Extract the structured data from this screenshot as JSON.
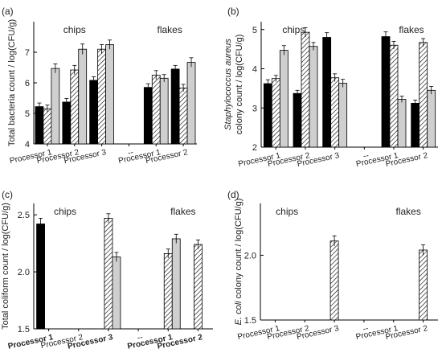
{
  "chart_data": [
    {
      "id": "a",
      "panel_label": "(a)",
      "type": "bar",
      "ylabel": "Total bacteria count / log(CFU/g)",
      "ylabel_parts": [],
      "ylim": [
        4,
        8
      ],
      "yticks": [
        4,
        5,
        6,
        7
      ],
      "categories": [
        "Processor 1",
        "Processor 2",
        "Processor 3",
        "--",
        "Processor 1",
        "Processor 2"
      ],
      "category_bold": [
        false,
        false,
        false,
        false,
        false,
        false
      ],
      "group_labels": [
        {
          "text": "chips",
          "over": 1
        },
        {
          "text": "flakes",
          "over": 4.5
        }
      ],
      "series": [
        {
          "pattern": "black",
          "values": [
            5.22,
            5.37,
            6.08,
            null,
            5.85,
            6.45
          ],
          "errors": [
            0.12,
            0.12,
            0.12,
            null,
            0.12,
            0.12
          ]
        },
        {
          "pattern": "hatch",
          "values": [
            5.15,
            6.42,
            7.1,
            null,
            6.25,
            5.83
          ],
          "errors": [
            0.12,
            0.15,
            0.15,
            null,
            0.15,
            0.12
          ]
        },
        {
          "pattern": "gray",
          "values": [
            6.47,
            7.1,
            7.25,
            null,
            6.15,
            6.67
          ],
          "errors": [
            0.15,
            0.17,
            0.15,
            null,
            0.12,
            0.15
          ]
        }
      ]
    },
    {
      "id": "b",
      "panel_label": "(b)",
      "type": "bar",
      "ylabel": "",
      "ylabel_parts": [
        "Staphylococcus aureus",
        "colony count / log(CFU/g)"
      ],
      "ylim": [
        2,
        5.2
      ],
      "yticks": [
        2,
        3,
        4,
        5
      ],
      "categories": [
        "Processor 1",
        "Processor 2",
        "Processor 3",
        "--",
        "Processor 1",
        "Processor 2"
      ],
      "category_bold": [
        false,
        false,
        false,
        false,
        false,
        false
      ],
      "group_labels": [
        {
          "text": "chips",
          "over": 0.6
        },
        {
          "text": "flakes",
          "over": 4.6
        }
      ],
      "series": [
        {
          "pattern": "black",
          "values": [
            3.62,
            3.37,
            4.8,
            null,
            4.82,
            3.12
          ],
          "errors": [
            0.1,
            0.08,
            0.12,
            null,
            0.12,
            0.08
          ]
        },
        {
          "pattern": "hatch",
          "values": [
            3.75,
            4.93,
            3.77,
            null,
            4.6,
            4.67
          ],
          "errors": [
            0.08,
            0.12,
            0.1,
            null,
            0.1,
            0.1
          ]
        },
        {
          "pattern": "gray",
          "values": [
            4.47,
            4.57,
            3.63,
            null,
            3.22,
            3.45
          ],
          "errors": [
            0.12,
            0.1,
            0.1,
            null,
            0.08,
            0.1
          ]
        }
      ]
    },
    {
      "id": "c",
      "panel_label": "(c)",
      "type": "bar",
      "ylabel": "Total coliform count / log(CFU/g)",
      "ylabel_parts": [],
      "ylim": [
        1.5,
        2.6
      ],
      "yticks": [
        1.5,
        2.0,
        2.5
      ],
      "categories": [
        "Processor 1",
        "Processor 2",
        "Processor 3",
        "--",
        "Processor 1",
        "Processor 2"
      ],
      "category_bold": [
        true,
        false,
        true,
        false,
        true,
        true
      ],
      "group_labels": [
        {
          "text": "chips",
          "over": 0.55
        },
        {
          "text": "flakes",
          "over": 4.5
        }
      ],
      "series": [
        {
          "pattern": "black",
          "values": [
            2.42,
            null,
            null,
            null,
            null,
            null
          ],
          "errors": [
            0.05,
            null,
            null,
            null,
            null,
            null
          ]
        },
        {
          "pattern": "hatch",
          "values": [
            null,
            null,
            2.47,
            null,
            2.16,
            2.24
          ],
          "errors": [
            null,
            null,
            0.04,
            null,
            0.04,
            0.04
          ]
        },
        {
          "pattern": "gray",
          "values": [
            null,
            null,
            2.13,
            null,
            2.29,
            null
          ],
          "errors": [
            null,
            null,
            0.04,
            null,
            0.04,
            null
          ]
        }
      ]
    },
    {
      "id": "d",
      "panel_label": "(d)",
      "type": "bar",
      "ylabel": "",
      "ylabel_parts": [
        "E. coli",
        " colony count / log(CFU/g)"
      ],
      "ylim": [
        1.5,
        2.4
      ],
      "yticks": [
        1.5,
        2.0
      ],
      "categories": [
        "Processor 1",
        "Processor 2",
        "Processor 3",
        "--",
        "Processor 1",
        "Processor 2"
      ],
      "category_bold": [
        false,
        false,
        false,
        false,
        false,
        false
      ],
      "group_labels": [
        {
          "text": "chips",
          "over": 0.4
        },
        {
          "text": "flakes",
          "over": 4.5
        }
      ],
      "series": [
        {
          "pattern": "black",
          "values": [
            null,
            null,
            null,
            null,
            null,
            null
          ],
          "errors": [
            null,
            null,
            null,
            null,
            null,
            null
          ]
        },
        {
          "pattern": "hatch",
          "values": [
            null,
            null,
            2.11,
            null,
            null,
            2.04
          ],
          "errors": [
            null,
            null,
            0.04,
            null,
            null,
            0.04
          ]
        },
        {
          "pattern": "gray",
          "values": [
            null,
            null,
            null,
            null,
            null,
            null
          ],
          "errors": [
            null,
            null,
            null,
            null,
            null,
            null
          ]
        }
      ]
    }
  ],
  "colors": {
    "black_bar": "#000000",
    "gray_bar": "#cfcfcf",
    "hatch_line": "#000000",
    "axis": "#000000"
  }
}
